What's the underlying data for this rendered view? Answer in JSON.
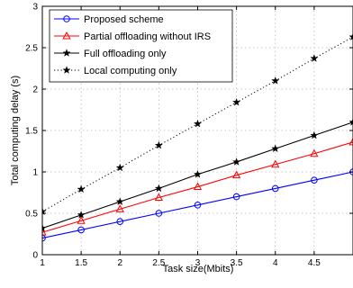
{
  "chart_data": {
    "type": "line",
    "title": "",
    "xlabel": "Task size(Mbits)",
    "ylabel": "Total computing delay (s)",
    "xlim": [
      1,
      5
    ],
    "ylim": [
      0,
      3
    ],
    "grid": true,
    "legend_position": "top-left",
    "x_ticks": [
      1,
      1.5,
      2,
      2.5,
      3,
      3.5,
      4,
      4.5
    ],
    "x_tick_labels": [
      "1",
      "1.5",
      "2",
      "2.5",
      "3",
      "3.5",
      "4",
      "4.5"
    ],
    "y_ticks": [
      0,
      0.5,
      1,
      1.5,
      2,
      2.5,
      3
    ],
    "y_tick_labels": [
      "0",
      "0.5",
      "1",
      "1.5",
      "2",
      "2.5",
      "3"
    ],
    "series": [
      {
        "name": "Proposed scheme",
        "color": "#0000ff",
        "marker": "circle",
        "line": "solid",
        "x": [
          1,
          1.5,
          2,
          2.5,
          3,
          3.5,
          4,
          4.5,
          5
        ],
        "y": [
          0.2,
          0.3,
          0.4,
          0.5,
          0.6,
          0.7,
          0.8,
          0.9,
          1.0
        ]
      },
      {
        "name": "Partial offloading without IRS",
        "color": "#ff0000",
        "marker": "triangle",
        "line": "solid",
        "x": [
          1,
          1.5,
          2,
          2.5,
          3,
          3.5,
          4,
          4.5,
          5
        ],
        "y": [
          0.27,
          0.41,
          0.55,
          0.69,
          0.82,
          0.96,
          1.09,
          1.22,
          1.36
        ]
      },
      {
        "name": "Full offloading only",
        "color": "#000000",
        "marker": "star",
        "line": "solid",
        "x": [
          1,
          1.5,
          2,
          2.5,
          3,
          3.5,
          4,
          4.5,
          5
        ],
        "y": [
          0.32,
          0.48,
          0.64,
          0.8,
          0.97,
          1.12,
          1.28,
          1.44,
          1.6
        ]
      },
      {
        "name": "Local computing only",
        "color": "#000000",
        "marker": "star",
        "line": "dotted",
        "x": [
          1,
          1.5,
          2,
          2.5,
          3,
          3.5,
          4,
          4.5,
          5
        ],
        "y": [
          0.52,
          0.79,
          1.05,
          1.32,
          1.58,
          1.84,
          2.1,
          2.37,
          2.63
        ]
      }
    ]
  }
}
